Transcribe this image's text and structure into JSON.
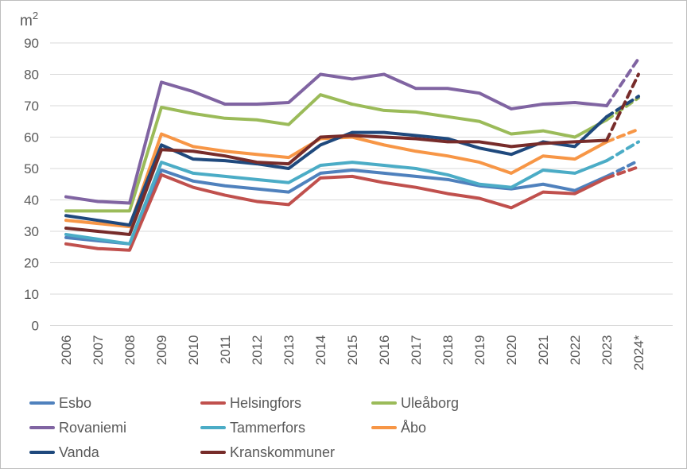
{
  "chart_data": {
    "type": "line",
    "title": "m²",
    "ylabel": "m²",
    "xlabel": "",
    "grid": true,
    "legend_position": "bottom",
    "ylim": [
      0,
      90
    ],
    "ytick_step": 10,
    "projected_last_point": true,
    "last_segment_style": "dashed",
    "colors": {
      "grid": "#d9d9d9",
      "axis_text": "#595959",
      "border": "#bdbdbd"
    },
    "categories": [
      "2006",
      "2007",
      "2008",
      "2009",
      "2010",
      "2011",
      "2012",
      "2013",
      "2014",
      "2015",
      "2016",
      "2017",
      "2018",
      "2019",
      "2020",
      "2021",
      "2022",
      "2023",
      "2024*"
    ],
    "series": [
      {
        "name": "Esbo",
        "color": "#4F81BD",
        "values": [
          28,
          27,
          26,
          49.5,
          46,
          44.5,
          43.5,
          42.5,
          48.5,
          49.5,
          48.5,
          47.5,
          46.5,
          44.5,
          43.5,
          45,
          43,
          47.5,
          52.5
        ]
      },
      {
        "name": "Helsingfors",
        "color": "#C0504D",
        "values": [
          26,
          24.5,
          24,
          48,
          44,
          41.5,
          39.5,
          38.5,
          47,
          47.5,
          45.5,
          44,
          42,
          40.5,
          37.5,
          42.5,
          42,
          47,
          50.5
        ]
      },
      {
        "name": "Uleåborg",
        "color": "#9BBB59",
        "values": [
          36.5,
          36.5,
          36.5,
          69.5,
          67.5,
          66,
          65.5,
          64,
          73.5,
          70.5,
          68.5,
          68,
          66.5,
          65,
          61,
          62,
          60,
          65.5,
          72.5
        ]
      },
      {
        "name": "Rovaniemi",
        "color": "#8064A2",
        "values": [
          41,
          39.5,
          39,
          77.5,
          74.5,
          70.5,
          70.5,
          71,
          80,
          78.5,
          80,
          75.5,
          75.5,
          74,
          69,
          70.5,
          71,
          70,
          85
        ]
      },
      {
        "name": "Tammerfors",
        "color": "#4BACC6",
        "values": [
          29,
          27.5,
          26,
          52,
          48.5,
          47.5,
          46.5,
          45.5,
          51,
          52,
          51,
          50,
          48,
          45,
          44,
          49.5,
          48.5,
          52.5,
          58.5
        ]
      },
      {
        "name": "Åbo",
        "color": "#F79646",
        "values": [
          33.5,
          32.5,
          31.5,
          61,
          57,
          55.5,
          54.5,
          53.5,
          59.5,
          60,
          57.5,
          55.5,
          54,
          52,
          48.5,
          54,
          53,
          58.5,
          62.5
        ]
      },
      {
        "name": "Vanda",
        "color": "#1F497D",
        "values": [
          35,
          33.5,
          32,
          57.5,
          53,
          52.5,
          51.5,
          50,
          57.5,
          61.5,
          61.5,
          60.5,
          59.5,
          56.5,
          54.5,
          58.5,
          57,
          66.5,
          73
        ]
      },
      {
        "name": "Kranskommuner",
        "color": "#772C2A",
        "values": [
          31,
          30,
          29,
          56,
          55.5,
          54,
          52,
          51.5,
          60,
          60.5,
          60,
          59.5,
          58.5,
          58.5,
          57,
          58,
          58.5,
          59,
          80
        ]
      }
    ]
  }
}
